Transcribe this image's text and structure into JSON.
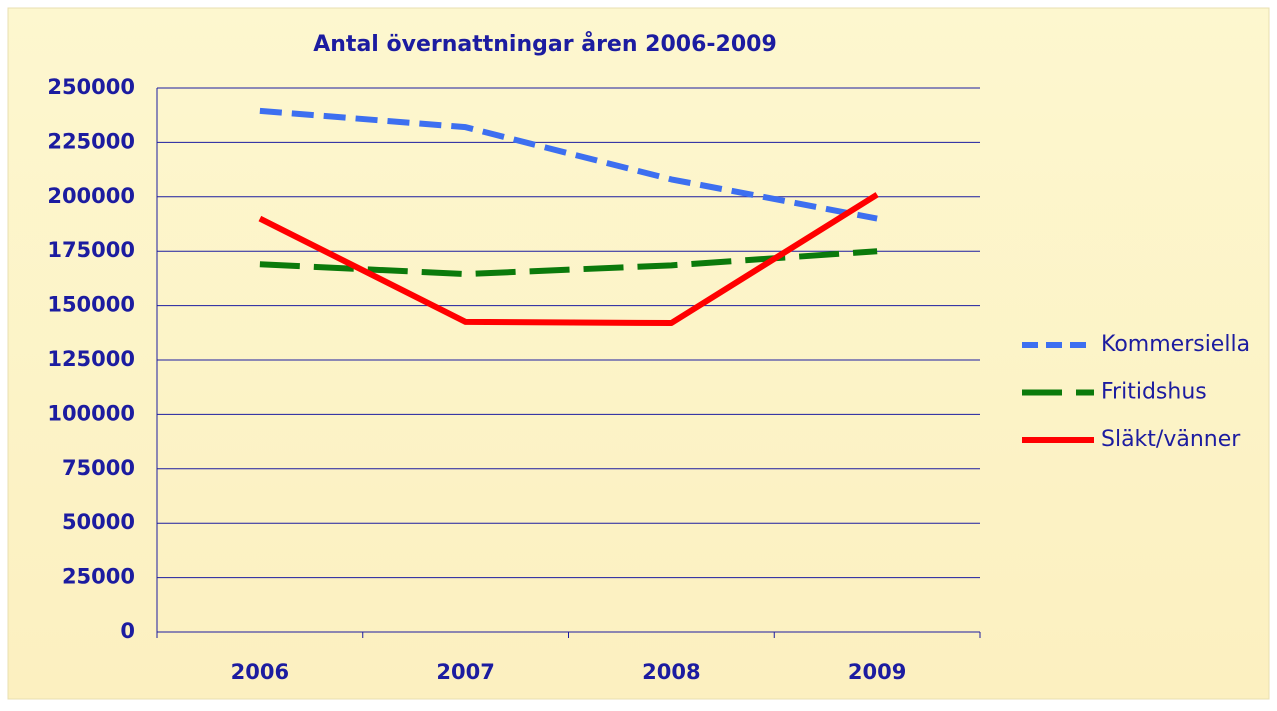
{
  "chart_data": {
    "type": "line",
    "title": "Antal övernattningar åren 2006-2009",
    "categories": [
      "2006",
      "2007",
      "2008",
      "2009"
    ],
    "series": [
      {
        "name": "Kommersiella",
        "color": "#3d6ff0",
        "dash": "dashed",
        "values": [
          239500,
          232000,
          208000,
          190000
        ]
      },
      {
        "name": "Fritidshus",
        "color": "#0b7a0b",
        "dash": "longdash",
        "values": [
          169000,
          164500,
          168500,
          175000
        ]
      },
      {
        "name": "Släkt/vänner",
        "color": "#ff0000",
        "dash": "solid",
        "values": [
          190000,
          142500,
          142000,
          201000
        ]
      }
    ],
    "ylim": [
      0,
      250000
    ],
    "yticks": [
      0,
      25000,
      50000,
      75000,
      100000,
      125000,
      150000,
      175000,
      200000,
      225000,
      250000
    ],
    "grid": true,
    "legend": "right"
  }
}
